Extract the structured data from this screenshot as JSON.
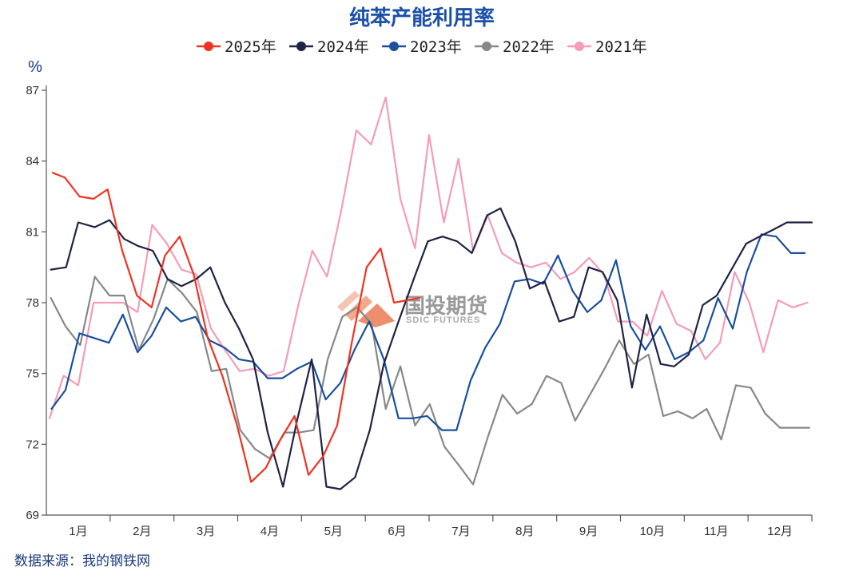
{
  "chart_data": {
    "type": "line",
    "title": "纯苯产能利用率",
    "ylabel": "%",
    "xlabel": "",
    "ylim": [
      69,
      87
    ],
    "yticks": [
      69,
      72,
      75,
      78,
      81,
      84,
      87
    ],
    "xlim": [
      0,
      12
    ],
    "categories": [
      "1月",
      "2月",
      "3月",
      "4月",
      "5月",
      "6月",
      "7月",
      "8月",
      "9月",
      "10月",
      "11月",
      "12月"
    ],
    "grid": false,
    "legend": "top",
    "source": "数据来源：我的钢铁网",
    "series": [
      {
        "name": "2025年",
        "color": "#ee3322",
        "x": [
          0.1,
          0.29,
          0.52,
          0.74,
          0.96,
          1.19,
          1.42,
          1.65,
          1.86,
          2.09,
          2.31,
          2.53,
          2.76,
          2.99,
          3.21,
          3.44,
          3.67,
          3.89,
          4.11,
          4.34,
          4.56,
          4.78,
          5.02,
          5.24,
          5.45,
          5.65,
          5.85
        ],
        "values": [
          83.5,
          83.3,
          82.5,
          82.4,
          82.8,
          80.2,
          78.3,
          77.8,
          80.0,
          80.8,
          79.2,
          76.5,
          74.9,
          72.8,
          70.4,
          71.0,
          72.2,
          73.2,
          70.7,
          71.5,
          72.8,
          76.2,
          79.5,
          80.3,
          78.0,
          78.1,
          78.2
        ]
      },
      {
        "name": "2024年",
        "color": "#1f2344",
        "x": [
          0.07,
          0.31,
          0.5,
          0.76,
          0.99,
          1.22,
          1.44,
          1.67,
          1.9,
          2.12,
          2.35,
          2.57,
          2.8,
          3.02,
          3.24,
          3.47,
          3.71,
          3.93,
          4.16,
          4.39,
          4.61,
          4.84,
          5.07,
          5.29,
          5.52,
          5.76,
          5.98,
          6.21,
          6.44,
          6.67,
          6.91,
          7.12,
          7.35,
          7.58,
          7.81,
          8.04,
          8.27,
          8.5,
          8.72,
          8.95,
          9.18,
          9.41,
          9.63,
          9.84,
          10.07,
          10.29,
          10.51,
          10.74,
          10.97,
          11.18,
          11.4,
          11.61,
          11.83,
          12.0
        ],
        "values": [
          79.4,
          79.5,
          81.4,
          81.2,
          81.5,
          80.7,
          80.4,
          80.2,
          79.0,
          78.7,
          79.0,
          79.5,
          78.0,
          76.9,
          75.6,
          72.5,
          70.2,
          73.0,
          75.6,
          70.2,
          70.1,
          70.6,
          72.6,
          75.4,
          77.2,
          79.0,
          80.6,
          80.8,
          80.6,
          80.1,
          81.7,
          82.0,
          80.6,
          78.6,
          78.9,
          77.2,
          77.4,
          79.5,
          79.3,
          78.1,
          74.4,
          77.5,
          75.4,
          75.3,
          75.8,
          77.9,
          78.3,
          79.4,
          80.5,
          80.8,
          81.1,
          81.4,
          81.4,
          81.4
        ]
      },
      {
        "name": "2023年",
        "color": "#1a4f9c",
        "x": [
          0.08,
          0.3,
          0.52,
          0.75,
          0.98,
          1.2,
          1.43,
          1.65,
          1.88,
          2.11,
          2.34,
          2.56,
          2.79,
          3.02,
          3.24,
          3.47,
          3.7,
          3.93,
          4.16,
          4.38,
          4.61,
          4.83,
          5.06,
          5.29,
          5.52,
          5.74,
          5.97,
          6.2,
          6.43,
          6.65,
          6.88,
          7.11,
          7.34,
          7.57,
          7.79,
          8.02,
          8.25,
          8.48,
          8.7,
          8.93,
          9.16,
          9.39,
          9.62,
          9.85,
          10.07,
          10.3,
          10.53,
          10.76,
          10.98,
          11.21,
          11.44,
          11.67,
          11.89
        ],
        "values": [
          73.5,
          74.3,
          76.7,
          76.5,
          76.3,
          77.5,
          75.9,
          76.6,
          77.8,
          77.2,
          77.4,
          76.4,
          76.1,
          75.6,
          75.5,
          74.8,
          74.8,
          75.2,
          75.5,
          73.9,
          74.6,
          76.0,
          77.2,
          75.6,
          73.1,
          73.1,
          73.2,
          72.6,
          72.6,
          74.7,
          76.1,
          77.1,
          78.9,
          79.0,
          78.8,
          80.0,
          78.5,
          77.6,
          78.1,
          79.8,
          77.0,
          76.0,
          77.0,
          75.6,
          75.9,
          76.4,
          78.2,
          76.9,
          79.3,
          80.9,
          80.8,
          80.1,
          80.1
        ]
      },
      {
        "name": "2022年",
        "color": "#888888",
        "x": [
          0.07,
          0.3,
          0.53,
          0.76,
          0.99,
          1.22,
          1.45,
          1.68,
          1.9,
          2.13,
          2.36,
          2.59,
          2.82,
          3.04,
          3.27,
          3.5,
          3.73,
          3.96,
          4.19,
          4.41,
          4.64,
          4.87,
          5.1,
          5.32,
          5.55,
          5.78,
          6.01,
          6.24,
          6.47,
          6.69,
          6.92,
          7.15,
          7.38,
          7.61,
          7.84,
          8.07,
          8.29,
          8.52,
          8.75,
          8.98,
          9.21,
          9.44,
          9.67,
          9.9,
          10.13,
          10.35,
          10.58,
          10.81,
          11.04,
          11.27,
          11.5,
          11.73,
          11.96
        ],
        "values": [
          78.2,
          77.0,
          76.2,
          79.1,
          78.3,
          78.3,
          76.0,
          77.3,
          79.0,
          78.4,
          77.6,
          75.1,
          75.2,
          72.6,
          71.8,
          71.4,
          72.5,
          72.5,
          72.6,
          75.6,
          77.4,
          77.8,
          77.1,
          73.5,
          75.3,
          72.8,
          73.7,
          71.9,
          71.1,
          70.3,
          72.3,
          74.1,
          73.3,
          73.7,
          74.9,
          74.6,
          73.0,
          74.1,
          75.2,
          76.4,
          75.4,
          75.8,
          73.2,
          73.4,
          73.1,
          73.5,
          72.2,
          74.5,
          74.4,
          73.3,
          72.7,
          72.7,
          72.7
        ]
      },
      {
        "name": "2021年",
        "color": "#f49cb8",
        "x": [
          0.05,
          0.27,
          0.5,
          0.74,
          0.97,
          1.2,
          1.43,
          1.66,
          1.89,
          2.12,
          2.35,
          2.58,
          2.8,
          3.03,
          3.26,
          3.49,
          3.72,
          3.95,
          4.17,
          4.4,
          4.63,
          4.86,
          5.09,
          5.32,
          5.55,
          5.78,
          6.0,
          6.23,
          6.46,
          6.69,
          6.92,
          7.14,
          7.37,
          7.6,
          7.83,
          8.06,
          8.28,
          8.51,
          8.74,
          8.96,
          9.19,
          9.42,
          9.65,
          9.88,
          10.11,
          10.33,
          10.56,
          10.79,
          11.02,
          11.24,
          11.47,
          11.7,
          11.93
        ],
        "values": [
          73.1,
          74.9,
          74.5,
          78.0,
          78.0,
          78.0,
          77.6,
          81.3,
          80.5,
          79.4,
          79.2,
          76.9,
          76.0,
          75.1,
          75.2,
          74.9,
          75.1,
          77.9,
          80.2,
          79.1,
          82.0,
          85.3,
          84.7,
          86.7,
          82.4,
          80.3,
          85.1,
          81.4,
          84.1,
          80.2,
          81.7,
          80.1,
          79.7,
          79.5,
          79.7,
          79.0,
          79.3,
          79.9,
          79.2,
          77.2,
          77.2,
          76.6,
          78.5,
          77.1,
          76.8,
          75.6,
          76.3,
          79.3,
          78.0,
          75.9,
          78.1,
          77.8,
          78.0
        ]
      }
    ]
  },
  "watermark": {
    "text": "国投期货",
    "sub": "SDIC FUTURES"
  }
}
